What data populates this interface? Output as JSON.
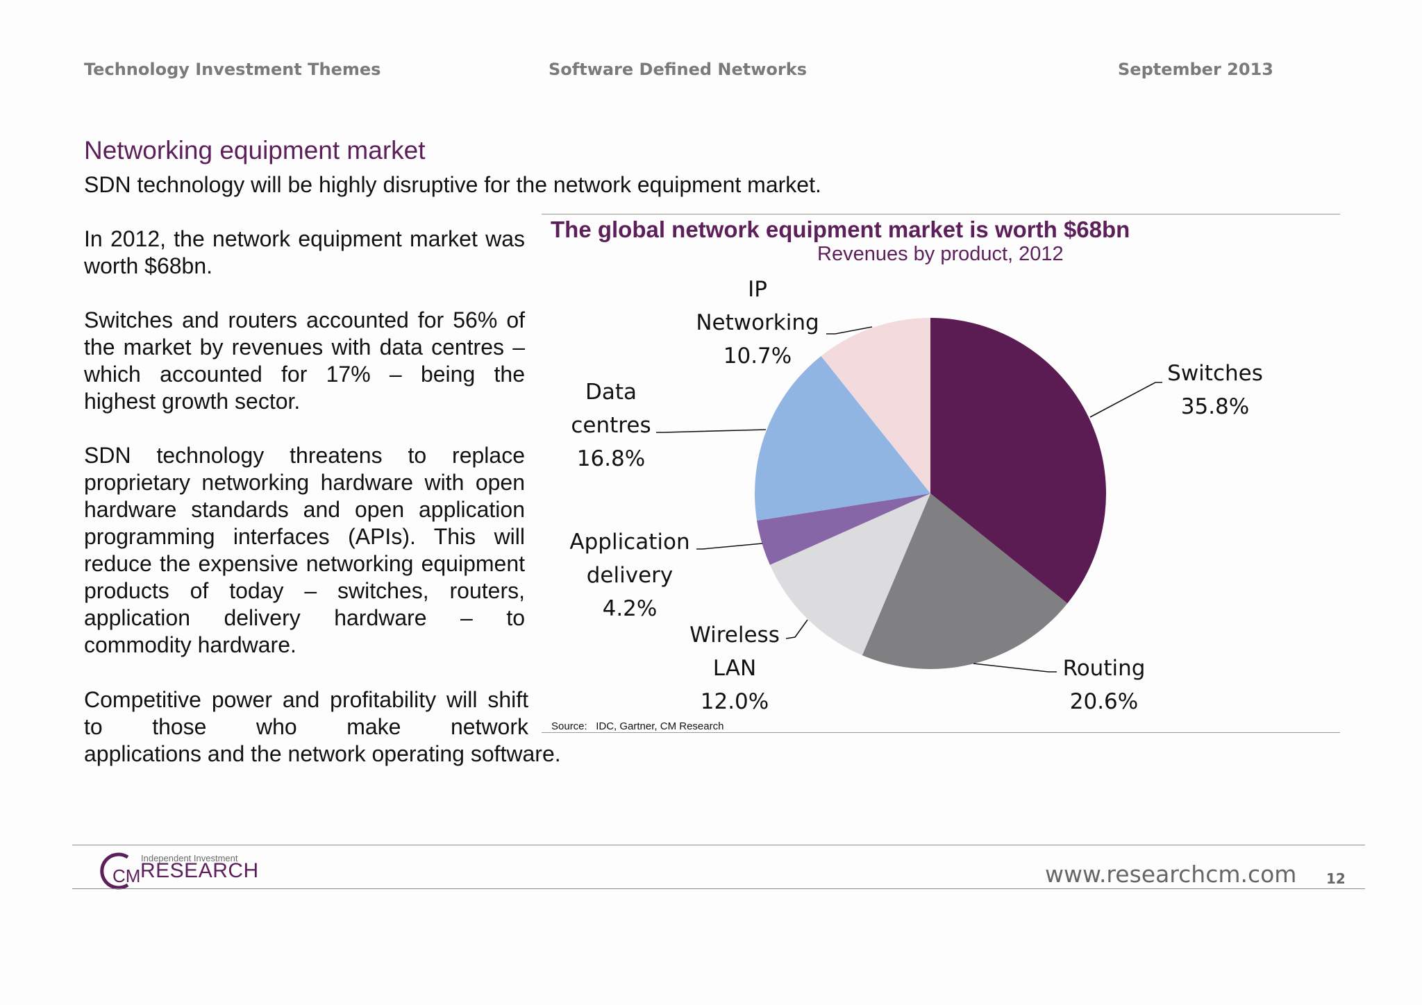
{
  "header": {
    "left": "Technology Investment Themes",
    "middle": "Software Defined Networks",
    "right": "September 2013"
  },
  "section": {
    "title": "Networking equipment market",
    "lead": "SDN technology will be highly disruptive for the network equipment market."
  },
  "body": {
    "p1": "In 2012, the network equipment market was worth $68bn.",
    "p2": "Switches and routers accounted for 56% of the market by revenues with data centres – which accounted for 17% – being the highest growth sector.",
    "p3": "SDN technology threatens to replace proprietary networking hardware with open hardware standards and open application programming interfaces (APIs). This will reduce the expensive networking equipment products of today – switches, routers, application delivery hardware – to commodity hardware.",
    "p4_main": "Competitive power and profitability will shift to those who make network",
    "p4_tail": "applications and the network operating software."
  },
  "chart_data": {
    "type": "pie",
    "title": "The global network equipment market is worth $68bn",
    "subtitle": "Revenues by product, 2012",
    "slices": [
      {
        "name": "Switches",
        "value": 35.8,
        "label": "35.8%",
        "color": "#5a1c52"
      },
      {
        "name": "Routing",
        "value": 20.6,
        "label": "20.6%",
        "color": "#807f82"
      },
      {
        "name": "Wireless LAN",
        "value": 12.0,
        "label": "12.0%",
        "color": "#dcdbdd"
      },
      {
        "name": "Application delivery",
        "value": 4.2,
        "label": "4.2%",
        "color": "#8666a6"
      },
      {
        "name": "Data centres",
        "value": 16.8,
        "label": "16.8%",
        "color": "#91b5e2"
      },
      {
        "name": "IP Networking",
        "value": 10.7,
        "label": "10.7%",
        "color": "#f3dbdd"
      }
    ],
    "start": "12 o'clock",
    "direction": "clockwise",
    "source_label": "Source:",
    "source": "IDC, Gartner, CM Research"
  },
  "footer": {
    "logo_small": "Independent Investment",
    "logo_big": "RESEARCH",
    "logo_letters": "CM",
    "website": "www.researchcm.com",
    "page": "12"
  }
}
